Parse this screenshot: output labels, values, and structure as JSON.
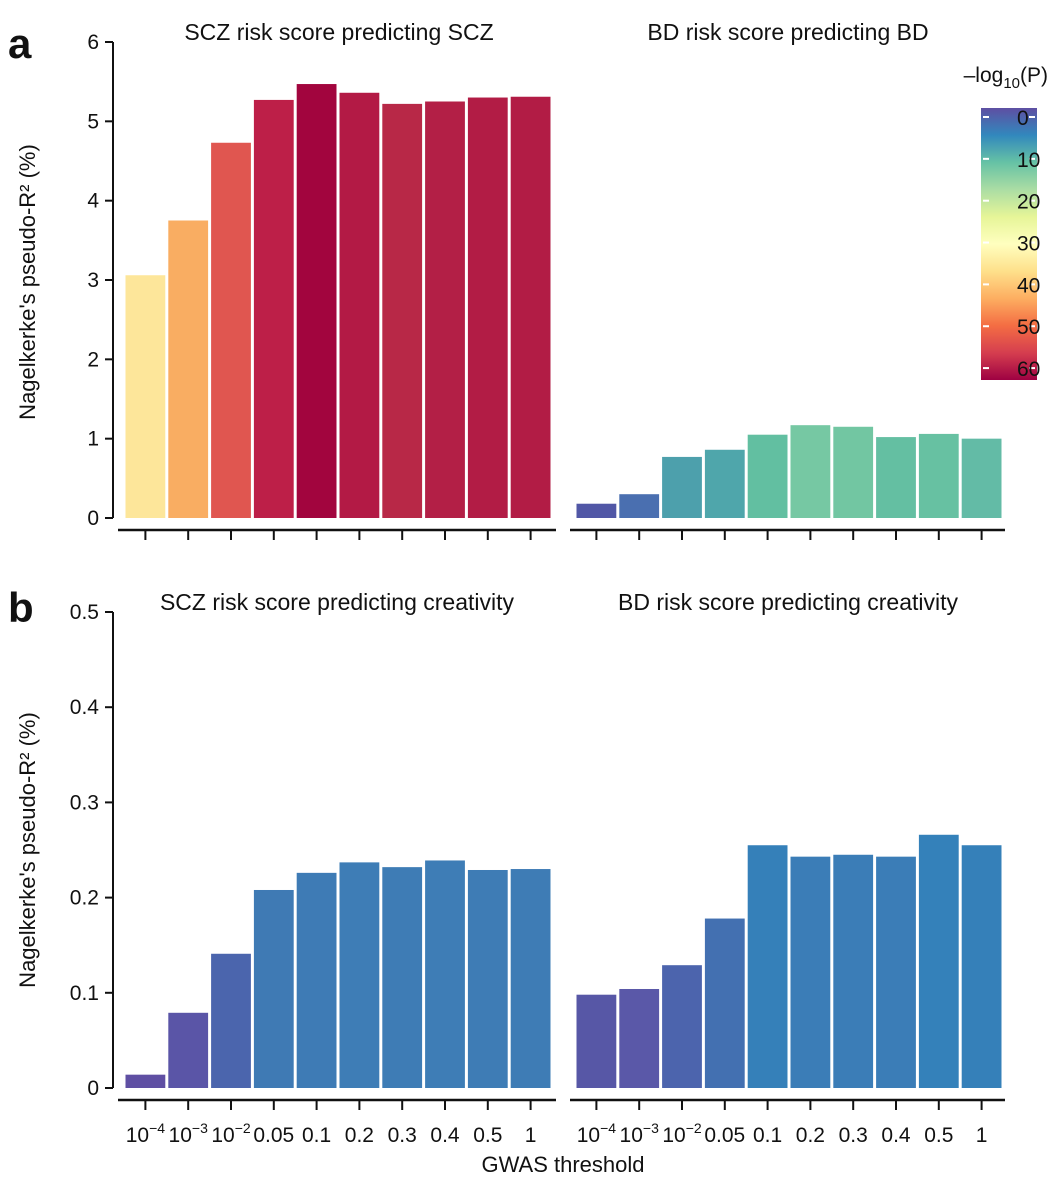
{
  "chart_data": [
    {
      "panel_label": "a",
      "type": "bar",
      "ylabel": "Nagelkerke's pseudo-R² (%)",
      "ylim": [
        0,
        6
      ],
      "yticks": [
        "0",
        "1",
        "2",
        "3",
        "4",
        "5",
        "6"
      ],
      "grid": false,
      "categories": [
        "10^-4",
        "10^-3",
        "10^-2",
        "0.05",
        "0.1",
        "0.2",
        "0.3",
        "0.4",
        "0.5",
        "1"
      ],
      "subplots": [
        {
          "title": "SCZ risk score predicting SCZ",
          "values": [
            3.06,
            3.75,
            4.73,
            5.27,
            5.47,
            5.36,
            5.22,
            5.25,
            5.3,
            5.31
          ],
          "colors": [
            "#fde69a",
            "#f9ad62",
            "#e05650",
            "#bd1f48",
            "#a2053e",
            "#b31a45",
            "#b82847",
            "#b31f46",
            "#b21c45",
            "#b21c45"
          ]
        },
        {
          "title": "BD risk score predicting BD",
          "values": [
            0.18,
            0.3,
            0.77,
            0.86,
            1.05,
            1.17,
            1.15,
            1.02,
            1.06,
            1.0
          ],
          "colors": [
            "#5157a6",
            "#4a6fb0",
            "#4da0ac",
            "#4fa6ab",
            "#62bfa1",
            "#76c8a3",
            "#72c6a2",
            "#64bfa2",
            "#67c1a2",
            "#63bba6"
          ]
        }
      ],
      "colorbar": {
        "title": "–log10(P)",
        "title_main": "–log",
        "title_sub": "10",
        "title_end": "(P)",
        "ticks": [
          "0",
          "10",
          "20",
          "30",
          "40",
          "50",
          "60"
        ],
        "range": [
          0,
          65
        ],
        "colors": [
          "#5e4fa2",
          "#3288bd",
          "#66c2a5",
          "#abdda4",
          "#e6f598",
          "#ffffbf",
          "#fee08b",
          "#fdae61",
          "#f46d43",
          "#d53e4f",
          "#9e0142"
        ]
      }
    },
    {
      "panel_label": "b",
      "type": "bar",
      "ylabel": "Nagelkerke's pseudo-R² (%)",
      "xlabel": "GWAS threshold",
      "ylim": [
        0,
        0.5
      ],
      "yticks": [
        "0",
        "0.1",
        "0.2",
        "0.3",
        "0.4",
        "0.5"
      ],
      "grid": false,
      "categories": [
        "10^-4",
        "10^-3",
        "10^-2",
        "0.05",
        "0.1",
        "0.2",
        "0.3",
        "0.4",
        "0.5",
        "1"
      ],
      "subplots": [
        {
          "title": "SCZ risk score predicting creativity",
          "values": [
            0.014,
            0.079,
            0.141,
            0.208,
            0.226,
            0.237,
            0.232,
            0.239,
            0.229,
            0.23
          ],
          "colors": [
            "#5f4fa3",
            "#5a55a7",
            "#4b65ad",
            "#3f7ab4",
            "#3e7bb5",
            "#3e7db6",
            "#3e7cb5",
            "#3e7db6",
            "#3e7cb5",
            "#3e7cb5"
          ]
        },
        {
          "title": "BD risk score predicting creativity",
          "values": [
            0.098,
            0.104,
            0.129,
            0.178,
            0.255,
            0.243,
            0.245,
            0.243,
            0.266,
            0.255
          ],
          "colors": [
            "#5757a6",
            "#5a58a8",
            "#4c64ad",
            "#4370b1",
            "#3580b9",
            "#3b7db7",
            "#3b7db7",
            "#3b7db7",
            "#3481ba",
            "#3580b9"
          ]
        }
      ]
    }
  ]
}
